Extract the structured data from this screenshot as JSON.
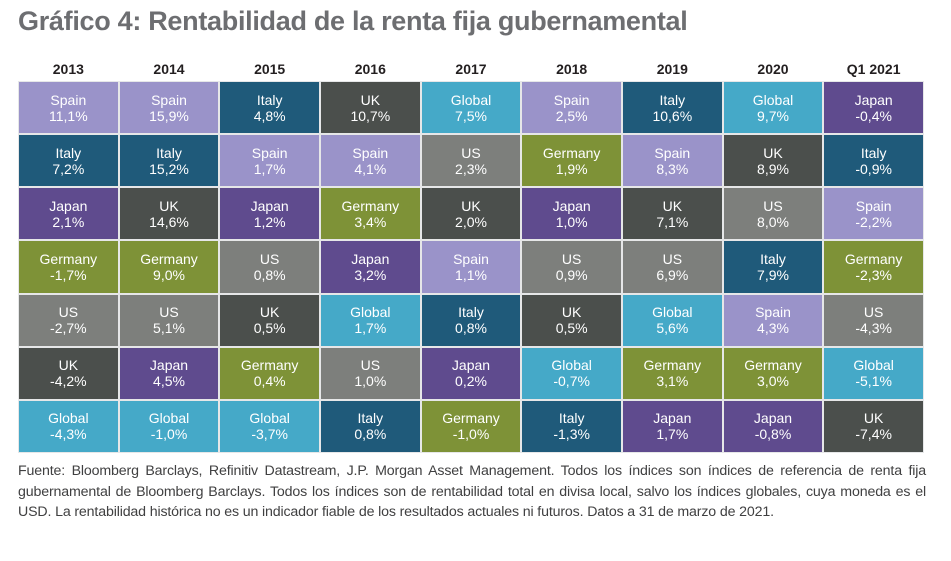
{
  "title": "Gráfico 4: Rentabilidad de la renta fija gubernamental",
  "colors": {
    "Spain": "#9a93c9",
    "Italy": "#1f5a7a",
    "UK": "#4b4f4c",
    "Global": "#45a9c8",
    "Japan": "#5f4b8e",
    "Germany": "#7e9237",
    "US": "#7d7f7c"
  },
  "chart_data": {
    "type": "table",
    "title": "Gráfico 4: Rentabilidad de la renta fija gubernamental",
    "columns": [
      "2013",
      "2014",
      "2015",
      "2016",
      "2017",
      "2018",
      "2019",
      "2020",
      "Q1 2021"
    ],
    "ranked_returns": [
      [
        {
          "label": "Spain",
          "value": "11,1%"
        },
        {
          "label": "Italy",
          "value": "7,2%"
        },
        {
          "label": "Japan",
          "value": "2,1%"
        },
        {
          "label": "Germany",
          "value": "-1,7%"
        },
        {
          "label": "US",
          "value": "-2,7%"
        },
        {
          "label": "UK",
          "value": "-4,2%"
        },
        {
          "label": "Global",
          "value": "-4,3%"
        }
      ],
      [
        {
          "label": "Spain",
          "value": "15,9%"
        },
        {
          "label": "Italy",
          "value": "15,2%"
        },
        {
          "label": "UK",
          "value": "14,6%"
        },
        {
          "label": "Germany",
          "value": "9,0%"
        },
        {
          "label": "US",
          "value": "5,1%"
        },
        {
          "label": "Japan",
          "value": "4,5%"
        },
        {
          "label": "Global",
          "value": "-1,0%"
        }
      ],
      [
        {
          "label": "Italy",
          "value": "4,8%"
        },
        {
          "label": "Spain",
          "value": "1,7%"
        },
        {
          "label": "Japan",
          "value": "1,2%"
        },
        {
          "label": "US",
          "value": "0,8%"
        },
        {
          "label": "UK",
          "value": "0,5%"
        },
        {
          "label": "Germany",
          "value": "0,4%"
        },
        {
          "label": "Global",
          "value": "-3,7%"
        }
      ],
      [
        {
          "label": "UK",
          "value": "10,7%"
        },
        {
          "label": "Spain",
          "value": "4,1%"
        },
        {
          "label": "Germany",
          "value": "3,4%"
        },
        {
          "label": "Japan",
          "value": "3,2%"
        },
        {
          "label": "Global",
          "value": "1,7%"
        },
        {
          "label": "US",
          "value": "1,0%"
        },
        {
          "label": "Italy",
          "value": "0,8%"
        }
      ],
      [
        {
          "label": "Global",
          "value": "7,5%"
        },
        {
          "label": "US",
          "value": "2,3%"
        },
        {
          "label": "UK",
          "value": "2,0%"
        },
        {
          "label": "Spain",
          "value": "1,1%"
        },
        {
          "label": "Italy",
          "value": "0,8%"
        },
        {
          "label": "Japan",
          "value": "0,2%"
        },
        {
          "label": "Germany",
          "value": "-1,0%"
        }
      ],
      [
        {
          "label": "Spain",
          "value": "2,5%"
        },
        {
          "label": "Germany",
          "value": "1,9%"
        },
        {
          "label": "Japan",
          "value": "1,0%"
        },
        {
          "label": "US",
          "value": "0,9%"
        },
        {
          "label": "UK",
          "value": "0,5%"
        },
        {
          "label": "Global",
          "value": "-0,7%"
        },
        {
          "label": "Italy",
          "value": "-1,3%"
        }
      ],
      [
        {
          "label": "Italy",
          "value": "10,6%"
        },
        {
          "label": "Spain",
          "value": "8,3%"
        },
        {
          "label": "UK",
          "value": "7,1%"
        },
        {
          "label": "US",
          "value": "6,9%"
        },
        {
          "label": "Global",
          "value": "5,6%"
        },
        {
          "label": "Germany",
          "value": "3,1%"
        },
        {
          "label": "Japan",
          "value": "1,7%"
        }
      ],
      [
        {
          "label": "Global",
          "value": "9,7%"
        },
        {
          "label": "UK",
          "value": "8,9%"
        },
        {
          "label": "US",
          "value": "8,0%"
        },
        {
          "label": "Italy",
          "value": "7,9%"
        },
        {
          "label": "Spain",
          "value": "4,3%"
        },
        {
          "label": "Germany",
          "value": "3,0%"
        },
        {
          "label": "Japan",
          "value": "-0,8%"
        }
      ],
      [
        {
          "label": "Japan",
          "value": "-0,4%"
        },
        {
          "label": "Italy",
          "value": "-0,9%"
        },
        {
          "label": "Spain",
          "value": "-2,2%"
        },
        {
          "label": "Germany",
          "value": "-2,3%"
        },
        {
          "label": "US",
          "value": "-4,3%"
        },
        {
          "label": "Global",
          "value": "-5,1%"
        },
        {
          "label": "UK",
          "value": "-7,4%"
        }
      ]
    ]
  },
  "footnote": "Fuente: Bloomberg Barclays, Refinitiv Datastream, J.P. Morgan Asset Management. Todos los índices son índices de referencia de renta fija gubernamental de Bloomberg Barclays. Todos los índices son de rentabilidad total en divisa local, salvo los índices globales, cuya moneda es el USD. La rentabilidad histórica no es un indicador fiable de los resultados actuales ni futuros. Datos a 31 de marzo de 2021."
}
